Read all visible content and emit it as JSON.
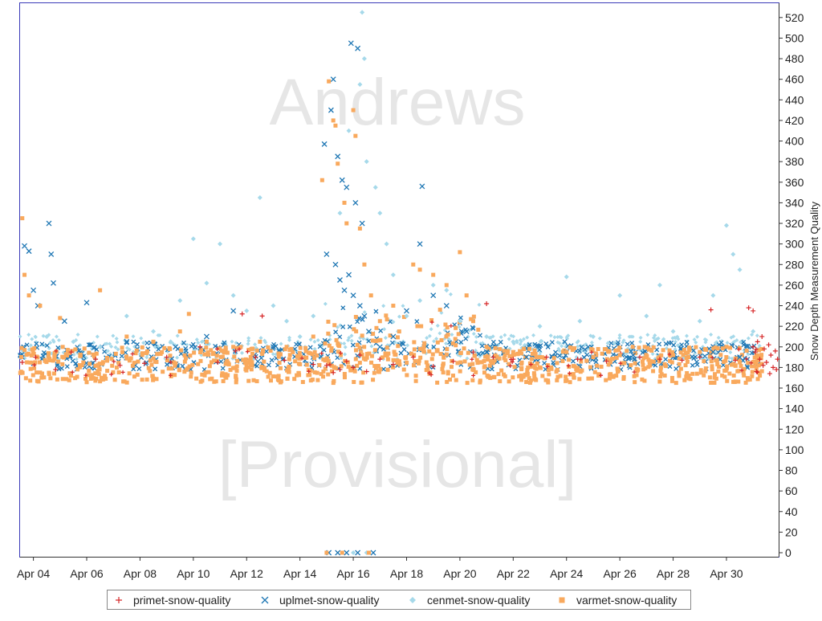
{
  "chart_data": {
    "type": "scatter",
    "watermark": [
      "Andrews",
      "[Provisional]"
    ],
    "ylabel": "Snow Depth Measurement Quality",
    "xlabel": "",
    "x_domain": [
      "2023-04-03T12:00",
      "2023-05-01T23:00"
    ],
    "ylim": [
      0,
      530
    ],
    "y_ticks": [
      0,
      20,
      40,
      60,
      80,
      100,
      120,
      140,
      160,
      180,
      200,
      220,
      240,
      260,
      280,
      300,
      320,
      340,
      360,
      380,
      400,
      420,
      440,
      460,
      480,
      500,
      520
    ],
    "x_ticks": [
      {
        "label": "Apr 04",
        "date": "2023-04-04"
      },
      {
        "label": "Apr 06",
        "date": "2023-04-06"
      },
      {
        "label": "Apr 08",
        "date": "2023-04-08"
      },
      {
        "label": "Apr 10",
        "date": "2023-04-10"
      },
      {
        "label": "Apr 12",
        "date": "2023-04-12"
      },
      {
        "label": "Apr 14",
        "date": "2023-04-14"
      },
      {
        "label": "Apr 16",
        "date": "2023-04-16"
      },
      {
        "label": "Apr 18",
        "date": "2023-04-18"
      },
      {
        "label": "Apr 20",
        "date": "2023-04-20"
      },
      {
        "label": "Apr 22",
        "date": "2023-04-22"
      },
      {
        "label": "Apr 24",
        "date": "2023-04-24"
      },
      {
        "label": "Apr 26",
        "date": "2023-04-26"
      },
      {
        "label": "Apr 28",
        "date": "2023-04-28"
      },
      {
        "label": "Apr 30",
        "date": "2023-04-30"
      }
    ],
    "grid": false,
    "legend_position": "bottom-center",
    "series": [
      {
        "name": "primet-snow-quality",
        "color": "#d62728",
        "marker": "plus",
        "points": [
          [
            "2023-04-03T14:00",
            185
          ],
          [
            "2023-04-04T02:00",
            190
          ],
          [
            "2023-04-04T20:00",
            178
          ],
          [
            "2023-04-05T10:00",
            195
          ],
          [
            "2023-04-06T08:00",
            188
          ],
          [
            "2023-04-07T06:00",
            182
          ],
          [
            "2023-04-08T04:00",
            184
          ],
          [
            "2023-04-09T00:00",
            190
          ],
          [
            "2023-04-10T06:00",
            200
          ],
          [
            "2023-04-10T22:00",
            185
          ],
          [
            "2023-04-11T14:00",
            196
          ],
          [
            "2023-04-11T20:00",
            232
          ],
          [
            "2023-04-12T08:00",
            190
          ],
          [
            "2023-04-12T14:00",
            230
          ],
          [
            "2023-04-13T10:00",
            187
          ],
          [
            "2023-04-14T12:00",
            183
          ],
          [
            "2023-04-15T00:00",
            182
          ],
          [
            "2023-04-15T06:00",
            175
          ],
          [
            "2023-04-15T12:00",
            178
          ],
          [
            "2023-04-15T18:00",
            186
          ],
          [
            "2023-04-16T00:00",
            180
          ],
          [
            "2023-04-16T06:00",
            192
          ],
          [
            "2023-04-16T12:00",
            176
          ],
          [
            "2023-04-17T00:00",
            188
          ],
          [
            "2023-04-17T12:00",
            183
          ],
          [
            "2023-04-18T06:00",
            190
          ],
          [
            "2023-04-19T00:00",
            181
          ],
          [
            "2023-04-19T18:00",
            186
          ],
          [
            "2023-04-20T12:00",
            195
          ],
          [
            "2023-04-21T00:00",
            242
          ],
          [
            "2023-04-21T06:00",
            190
          ],
          [
            "2023-04-22T00:00",
            188
          ],
          [
            "2023-04-23T06:00",
            190
          ],
          [
            "2023-04-24T10:00",
            188
          ],
          [
            "2023-04-25T12:00",
            186
          ],
          [
            "2023-04-26T18:00",
            190
          ],
          [
            "2023-04-27T12:00",
            188
          ],
          [
            "2023-04-28T08:00",
            187
          ],
          [
            "2023-04-29T00:00",
            190
          ],
          [
            "2023-04-29T10:00",
            236
          ],
          [
            "2023-04-30T08:00",
            187
          ],
          [
            "2023-04-30T20:00",
            238
          ],
          [
            "2023-05-01T00:00",
            235
          ],
          [
            "2023-05-01T00:00",
            200
          ],
          [
            "2023-05-01T02:00",
            195
          ],
          [
            "2023-05-01T04:00",
            205
          ],
          [
            "2023-05-01T06:00",
            188
          ],
          [
            "2023-05-01T08:00",
            210
          ],
          [
            "2023-05-01T10:00",
            198
          ],
          [
            "2023-05-01T12:00",
            185
          ],
          [
            "2023-05-01T14:00",
            202
          ],
          [
            "2023-05-01T16:00",
            192
          ],
          [
            "2023-05-01T18:00",
            180
          ],
          [
            "2023-05-01T20:00",
            196
          ],
          [
            "2023-05-01T22:00",
            188
          ],
          [
            "2023-05-01T03:00",
            176
          ],
          [
            "2023-05-01T09:00",
            182
          ],
          [
            "2023-05-01T15:00",
            174
          ],
          [
            "2023-05-01T21:00",
            178
          ]
        ]
      },
      {
        "name": "uplmet-snow-quality",
        "color": "#1f77b4",
        "marker": "x",
        "points": [
          [
            "2023-04-03T16:00",
            298
          ],
          [
            "2023-04-03T20:00",
            293
          ],
          [
            "2023-04-04T00:00",
            255
          ],
          [
            "2023-04-04T04:00",
            240
          ],
          [
            "2023-04-04T14:00",
            320
          ],
          [
            "2023-04-04T16:00",
            290
          ],
          [
            "2023-04-04T18:00",
            262
          ],
          [
            "2023-04-05T04:00",
            225
          ],
          [
            "2023-04-06T00:00",
            243
          ],
          [
            "2023-04-07T12:00",
            205
          ],
          [
            "2023-04-09T08:00",
            200
          ],
          [
            "2023-04-10T12:00",
            210
          ],
          [
            "2023-04-11T12:00",
            235
          ],
          [
            "2023-04-13T00:00",
            200
          ],
          [
            "2023-04-14T22:00",
            397
          ],
          [
            "2023-04-15T06:00",
            460
          ],
          [
            "2023-04-15T04:00",
            430
          ],
          [
            "2023-04-15T10:00",
            385
          ],
          [
            "2023-04-15T14:00",
            362
          ],
          [
            "2023-04-15T18:00",
            355
          ],
          [
            "2023-04-15T22:00",
            495
          ],
          [
            "2023-04-16T04:00",
            490
          ],
          [
            "2023-04-16T02:00",
            340
          ],
          [
            "2023-04-16T08:00",
            320
          ],
          [
            "2023-04-15T00:00",
            290
          ],
          [
            "2023-04-15T08:00",
            280
          ],
          [
            "2023-04-15T12:00",
            265
          ],
          [
            "2023-04-15T16:00",
            255
          ],
          [
            "2023-04-15T20:00",
            270
          ],
          [
            "2023-04-16T00:00",
            250
          ],
          [
            "2023-04-16T06:00",
            240
          ],
          [
            "2023-04-16T10:00",
            230
          ],
          [
            "2023-04-16T14:00",
            215
          ],
          [
            "2023-04-17T00:00",
            200
          ],
          [
            "2023-04-17T12:00",
            210
          ],
          [
            "2023-04-18T00:00",
            235
          ],
          [
            "2023-04-18T12:00",
            300
          ],
          [
            "2023-04-18T14:00",
            356
          ],
          [
            "2023-04-19T00:00",
            250
          ],
          [
            "2023-04-19T12:00",
            240
          ],
          [
            "2023-04-20T06:00",
            215
          ],
          [
            "2023-04-21T00:00",
            195
          ],
          [
            "2023-04-22T12:00",
            190
          ],
          [
            "2023-04-24T00:00",
            195
          ],
          [
            "2023-04-25T00:00",
            190
          ],
          [
            "2023-04-26T12:00",
            192
          ],
          [
            "2023-04-28T00:00",
            190
          ],
          [
            "2023-04-29T12:00",
            195
          ],
          [
            "2023-04-30T12:00",
            190
          ],
          [
            "2023-04-15T02:00",
            0
          ],
          [
            "2023-04-15T10:00",
            0
          ],
          [
            "2023-04-15T18:00",
            0
          ],
          [
            "2023-04-16T04:00",
            0
          ],
          [
            "2023-04-16T18:00",
            0
          ]
        ]
      },
      {
        "name": "cenmet-snow-quality",
        "color": "#a6d9ea",
        "marker": "diamond",
        "points": [
          [
            "2023-04-04T12:00",
            210
          ],
          [
            "2023-04-05T12:00",
            205
          ],
          [
            "2023-04-06T12:00",
            200
          ],
          [
            "2023-04-07T12:00",
            230
          ],
          [
            "2023-04-08T12:00",
            215
          ],
          [
            "2023-04-09T12:00",
            245
          ],
          [
            "2023-04-10T00:00",
            305
          ],
          [
            "2023-04-10T12:00",
            262
          ],
          [
            "2023-04-11T00:00",
            300
          ],
          [
            "2023-04-11T12:00",
            250
          ],
          [
            "2023-04-12T00:00",
            235
          ],
          [
            "2023-04-12T12:00",
            345
          ],
          [
            "2023-04-13T00:00",
            240
          ],
          [
            "2023-04-13T12:00",
            225
          ],
          [
            "2023-04-14T00:00",
            210
          ],
          [
            "2023-04-14T12:00",
            230
          ],
          [
            "2023-04-15T12:00",
            330
          ],
          [
            "2023-04-15T20:00",
            410
          ],
          [
            "2023-04-16T06:00",
            455
          ],
          [
            "2023-04-16T08:00",
            525
          ],
          [
            "2023-04-16T10:00",
            480
          ],
          [
            "2023-04-16T12:00",
            380
          ],
          [
            "2023-04-16T20:00",
            355
          ],
          [
            "2023-04-17T00:00",
            330
          ],
          [
            "2023-04-17T06:00",
            300
          ],
          [
            "2023-04-17T12:00",
            270
          ],
          [
            "2023-04-18T00:00",
            230
          ],
          [
            "2023-04-18T12:00",
            245
          ],
          [
            "2023-04-19T00:00",
            260
          ],
          [
            "2023-04-19T12:00",
            255
          ],
          [
            "2023-04-20T00:00",
            225
          ],
          [
            "2023-04-21T00:00",
            210
          ],
          [
            "2023-04-22T00:00",
            205
          ],
          [
            "2023-04-23T00:00",
            220
          ],
          [
            "2023-04-24T00:00",
            268
          ],
          [
            "2023-04-24T12:00",
            225
          ],
          [
            "2023-04-25T00:00",
            210
          ],
          [
            "2023-04-26T00:00",
            250
          ],
          [
            "2023-04-27T00:00",
            230
          ],
          [
            "2023-04-27T12:00",
            260
          ],
          [
            "2023-04-28T00:00",
            215
          ],
          [
            "2023-04-29T00:00",
            225
          ],
          [
            "2023-04-29T12:00",
            250
          ],
          [
            "2023-04-30T00:00",
            318
          ],
          [
            "2023-04-30T06:00",
            290
          ],
          [
            "2023-04-30T12:00",
            275
          ],
          [
            "2023-05-01T00:00",
            215
          ],
          [
            "2023-04-16T00:00",
            0
          ],
          [
            "2023-04-16T12:00",
            0
          ]
        ]
      },
      {
        "name": "varmet-snow-quality",
        "color": "#f9a95d",
        "marker": "square",
        "points": [
          [
            "2023-04-03T14:00",
            325
          ],
          [
            "2023-04-03T16:00",
            270
          ],
          [
            "2023-04-03T20:00",
            250
          ],
          [
            "2023-04-04T06:00",
            240
          ],
          [
            "2023-04-05T00:00",
            228
          ],
          [
            "2023-04-06T12:00",
            255
          ],
          [
            "2023-04-07T12:00",
            210
          ],
          [
            "2023-04-08T12:00",
            205
          ],
          [
            "2023-04-09T12:00",
            215
          ],
          [
            "2023-04-09T20:00",
            232
          ],
          [
            "2023-04-10T12:00",
            205
          ],
          [
            "2023-04-11T12:00",
            200
          ],
          [
            "2023-04-12T12:00",
            205
          ],
          [
            "2023-04-13T12:00",
            200
          ],
          [
            "2023-04-14T12:00",
            210
          ],
          [
            "2023-04-14T20:00",
            362
          ],
          [
            "2023-04-15T02:00",
            458
          ],
          [
            "2023-04-15T06:00",
            420
          ],
          [
            "2023-04-15T08:00",
            415
          ],
          [
            "2023-04-15T10:00",
            378
          ],
          [
            "2023-04-15T16:00",
            340
          ],
          [
            "2023-04-15T18:00",
            320
          ],
          [
            "2023-04-16T00:00",
            430
          ],
          [
            "2023-04-16T02:00",
            405
          ],
          [
            "2023-04-16T06:00",
            315
          ],
          [
            "2023-04-16T10:00",
            280
          ],
          [
            "2023-04-16T16:00",
            250
          ],
          [
            "2023-04-17T00:00",
            225
          ],
          [
            "2023-04-17T12:00",
            240
          ],
          [
            "2023-04-18T06:00",
            280
          ],
          [
            "2023-04-18T12:00",
            275
          ],
          [
            "2023-04-19T00:00",
            270
          ],
          [
            "2023-04-19T12:00",
            260
          ],
          [
            "2023-04-20T00:00",
            292
          ],
          [
            "2023-04-20T06:00",
            250
          ],
          [
            "2023-04-20T12:00",
            225
          ],
          [
            "2023-04-21T00:00",
            200
          ],
          [
            "2023-04-22T00:00",
            195
          ],
          [
            "2023-04-23T00:00",
            190
          ],
          [
            "2023-04-24T00:00",
            195
          ],
          [
            "2023-04-25T00:00",
            190
          ],
          [
            "2023-04-26T00:00",
            192
          ],
          [
            "2023-04-27T00:00",
            190
          ],
          [
            "2023-04-28T00:00",
            192
          ],
          [
            "2023-04-29T00:00",
            195
          ],
          [
            "2023-04-30T00:00",
            200
          ],
          [
            "2023-04-30T12:00",
            185
          ],
          [
            "2023-04-15T00:00",
            0
          ],
          [
            "2023-04-15T14:00",
            0
          ],
          [
            "2023-04-16T14:00",
            0
          ]
        ]
      }
    ]
  }
}
